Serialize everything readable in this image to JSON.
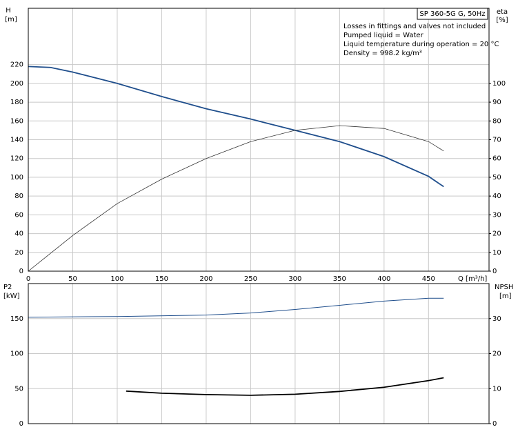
{
  "chart_data": [
    {
      "type": "line",
      "ylabel": "H",
      "yunit": "[m]",
      "y2label": "eta",
      "y2unit": "[%]",
      "xlabel": "Q [m³/h]",
      "title": "SP 360-5G G, 50Hz",
      "annotations": [
        "Losses in fittings and valves not included",
        "Pumped liquid = Water",
        "Liquid temperature during operation = 20 °C",
        "Density = 998.2 kg/m³"
      ],
      "xlim": [
        0,
        518
      ],
      "xticks": [
        0,
        50,
        100,
        150,
        200,
        250,
        300,
        350,
        400,
        450
      ],
      "ylim": [
        0,
        280
      ],
      "yticks": [
        0,
        20,
        40,
        60,
        80,
        100,
        120,
        140,
        160,
        180,
        200,
        220
      ],
      "y2lim": [
        0,
        140
      ],
      "y2ticks": [
        0,
        10,
        20,
        30,
        40,
        50,
        60,
        70,
        80,
        90,
        100
      ],
      "grid": true,
      "series": [
        {
          "color": "#1f4e8c",
          "width": 1.8,
          "x": [
            0,
            25,
            50,
            100,
            150,
            200,
            250,
            300,
            350,
            400,
            450,
            467
          ],
          "values": [
            218,
            217,
            212,
            200,
            186,
            173,
            162,
            150,
            138,
            122,
            101,
            90
          ]
        },
        {
          "color": "#333333",
          "width": 0.8,
          "axis": "y2",
          "x": [
            0,
            50,
            100,
            150,
            200,
            250,
            300,
            350,
            400,
            450,
            467
          ],
          "values": [
            0,
            19,
            36,
            49,
            60,
            69,
            75,
            77.5,
            76,
            69,
            64
          ]
        }
      ]
    },
    {
      "type": "line",
      "ylabel": "P2",
      "yunit": "[kW]",
      "y2label": "NPSH",
      "y2unit": "[m]",
      "xlim": [
        0,
        518
      ],
      "ylim": [
        0,
        200
      ],
      "yticks": [
        0,
        50,
        100,
        150
      ],
      "y2lim": [
        0,
        40
      ],
      "y2ticks": [
        0,
        10,
        20,
        30
      ],
      "grid": true,
      "series": [
        {
          "color": "#1f4e8c",
          "width": 1,
          "x": [
            0,
            100,
            200,
            250,
            300,
            350,
            400,
            450,
            467
          ],
          "values": [
            152,
            153,
            155,
            158,
            163,
            169,
            175,
            179,
            179
          ]
        },
        {
          "color": "#000000",
          "width": 1.8,
          "axis": "y2",
          "x": [
            110,
            150,
            200,
            250,
            300,
            350,
            400,
            450,
            467
          ],
          "values": [
            9.3,
            8.7,
            8.3,
            8.1,
            8.4,
            9.2,
            10.4,
            12.3,
            13.1
          ]
        }
      ]
    }
  ]
}
